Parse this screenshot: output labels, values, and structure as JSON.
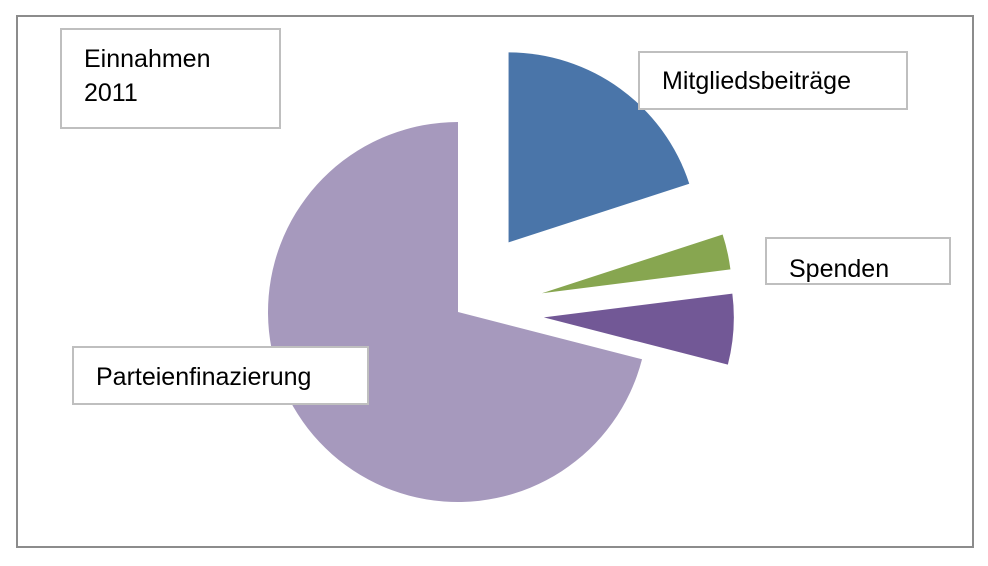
{
  "chart_data": {
    "type": "pie",
    "title": "Einnahmen 2011",
    "title_lines": [
      "Einnahmen",
      "2011"
    ],
    "exploded": true,
    "series": [
      {
        "values": [
          20,
          3,
          6,
          71
        ],
        "categories": [
          "Mitgliedsbeiträge",
          "",
          "",
          "Parteienfinazierung"
        ]
      }
    ],
    "data_labels": [
      "Mitgliedsbeiträge",
      "Spenden",
      "Parteienfinazierung"
    ],
    "colors": [
      "#4a75a9",
      "#87a650",
      "#725896",
      "#a699bd"
    ]
  }
}
